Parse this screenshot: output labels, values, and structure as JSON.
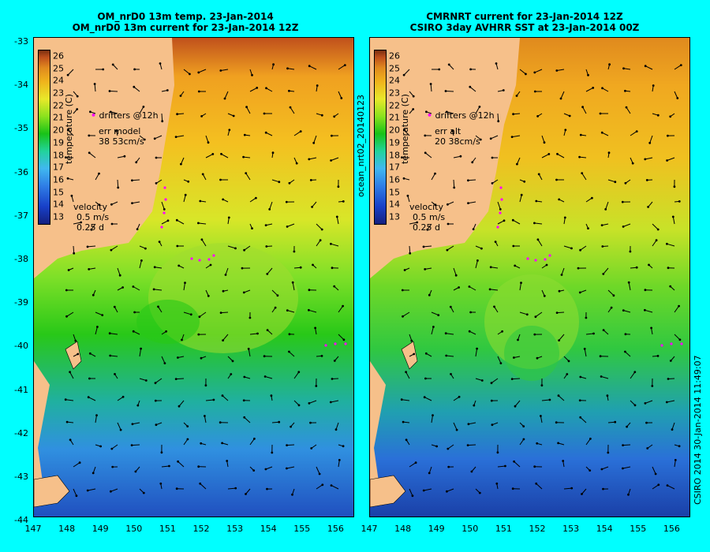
{
  "left_panel": {
    "title_line1": "OM_nrD0 13m temp. 23-Jan-2014",
    "title_line2": "OM_nrD0 13m current for 23-Jan-2014 12Z",
    "drifters_label": "drifters @12h",
    "err_line1": "err model",
    "err_line2": "38 53cm/s",
    "velocity_label": "velocity",
    "velocity_line1": "0.5 m/s",
    "velocity_line2": "0.25 d",
    "colorbar_label": "temperature (C)"
  },
  "right_panel": {
    "title_line1": "CMRNRT current for 23-Jan-2014 12Z",
    "title_line2": "CSIRO 3day AVHRR SST at 23-Jan-2014 00Z",
    "drifters_label": "drifters @12h",
    "err_line1": "err alt",
    "err_line2": "20 38cm/s",
    "velocity_label": "velocity",
    "velocity_line1": "0.5 m/s",
    "velocity_line2": "0.25 d",
    "colorbar_label": "temperature (C)",
    "side_label": "ocean_nrt02_20140123"
  },
  "footer_side_label": "CSIRO 2014   30-Jan-2014 11:49:07",
  "colorbar_ticks": [
    "26",
    "25",
    "24",
    "23",
    "22",
    "21",
    "20",
    "19",
    "18",
    "17",
    "16",
    "15",
    "14",
    "13"
  ],
  "latitude_ticks": [
    "-33",
    "-34",
    "-35",
    "-36",
    "-37",
    "-38",
    "-39",
    "-40",
    "-41",
    "-42",
    "-43",
    "-44"
  ],
  "longitude_ticks": [
    "147",
    "148",
    "149",
    "150",
    "151",
    "152",
    "153",
    "154",
    "155",
    "156"
  ],
  "colors": {
    "background": "#00ffff",
    "land": "#f6c08a",
    "drifters": "#ff00ff"
  }
}
